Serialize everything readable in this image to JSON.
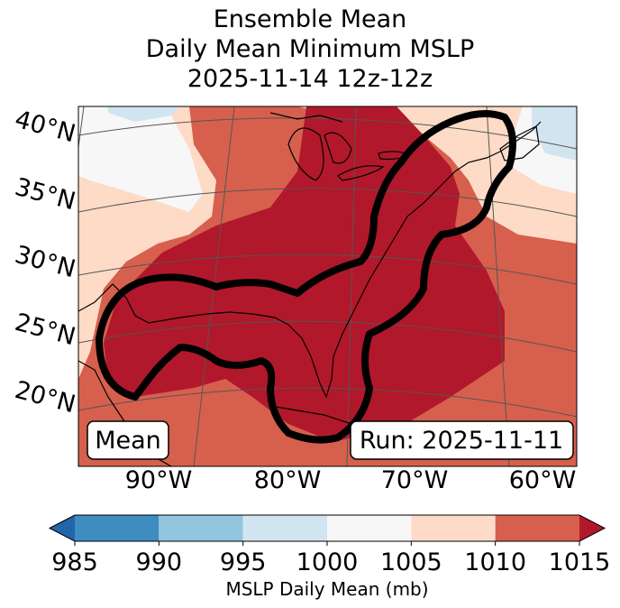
{
  "chart_data": {
    "type": "heatmap",
    "title": [
      "Ensemble Mean",
      "Daily Mean Minimum MSLP",
      "2025-11-14 12z-12z"
    ],
    "map": {
      "lat_labels": [
        "40°N",
        "35°N",
        "30°N",
        "25°N",
        "20°N"
      ],
      "lon_labels": [
        "90°W",
        "80°W",
        "70°W",
        "60°W"
      ],
      "annotation_left": "Mean",
      "annotation_right": "Run: 2025-11-11"
    },
    "colorbar": {
      "label": "MSLP Daily Mean (mb)",
      "ticks": [
        985,
        990,
        995,
        1000,
        1005,
        1010,
        1015
      ],
      "tick_labels": [
        "985",
        "990",
        "995",
        "1000",
        "1005",
        "1010",
        "1015"
      ],
      "bins": [
        {
          "from": 985,
          "to": 990,
          "color": "#3f8cc0"
        },
        {
          "from": 990,
          "to": 995,
          "color": "#92c5de"
        },
        {
          "from": 995,
          "to": 1000,
          "color": "#d1e5f0"
        },
        {
          "from": 1000,
          "to": 1005,
          "color": "#f7f7f7"
        },
        {
          "from": 1005,
          "to": 1010,
          "color": "#fddbc7"
        },
        {
          "from": 1010,
          "to": 1015,
          "color": "#d6604d"
        }
      ],
      "under_color": "#2166ac",
      "over_color": "#b2182b"
    }
  }
}
